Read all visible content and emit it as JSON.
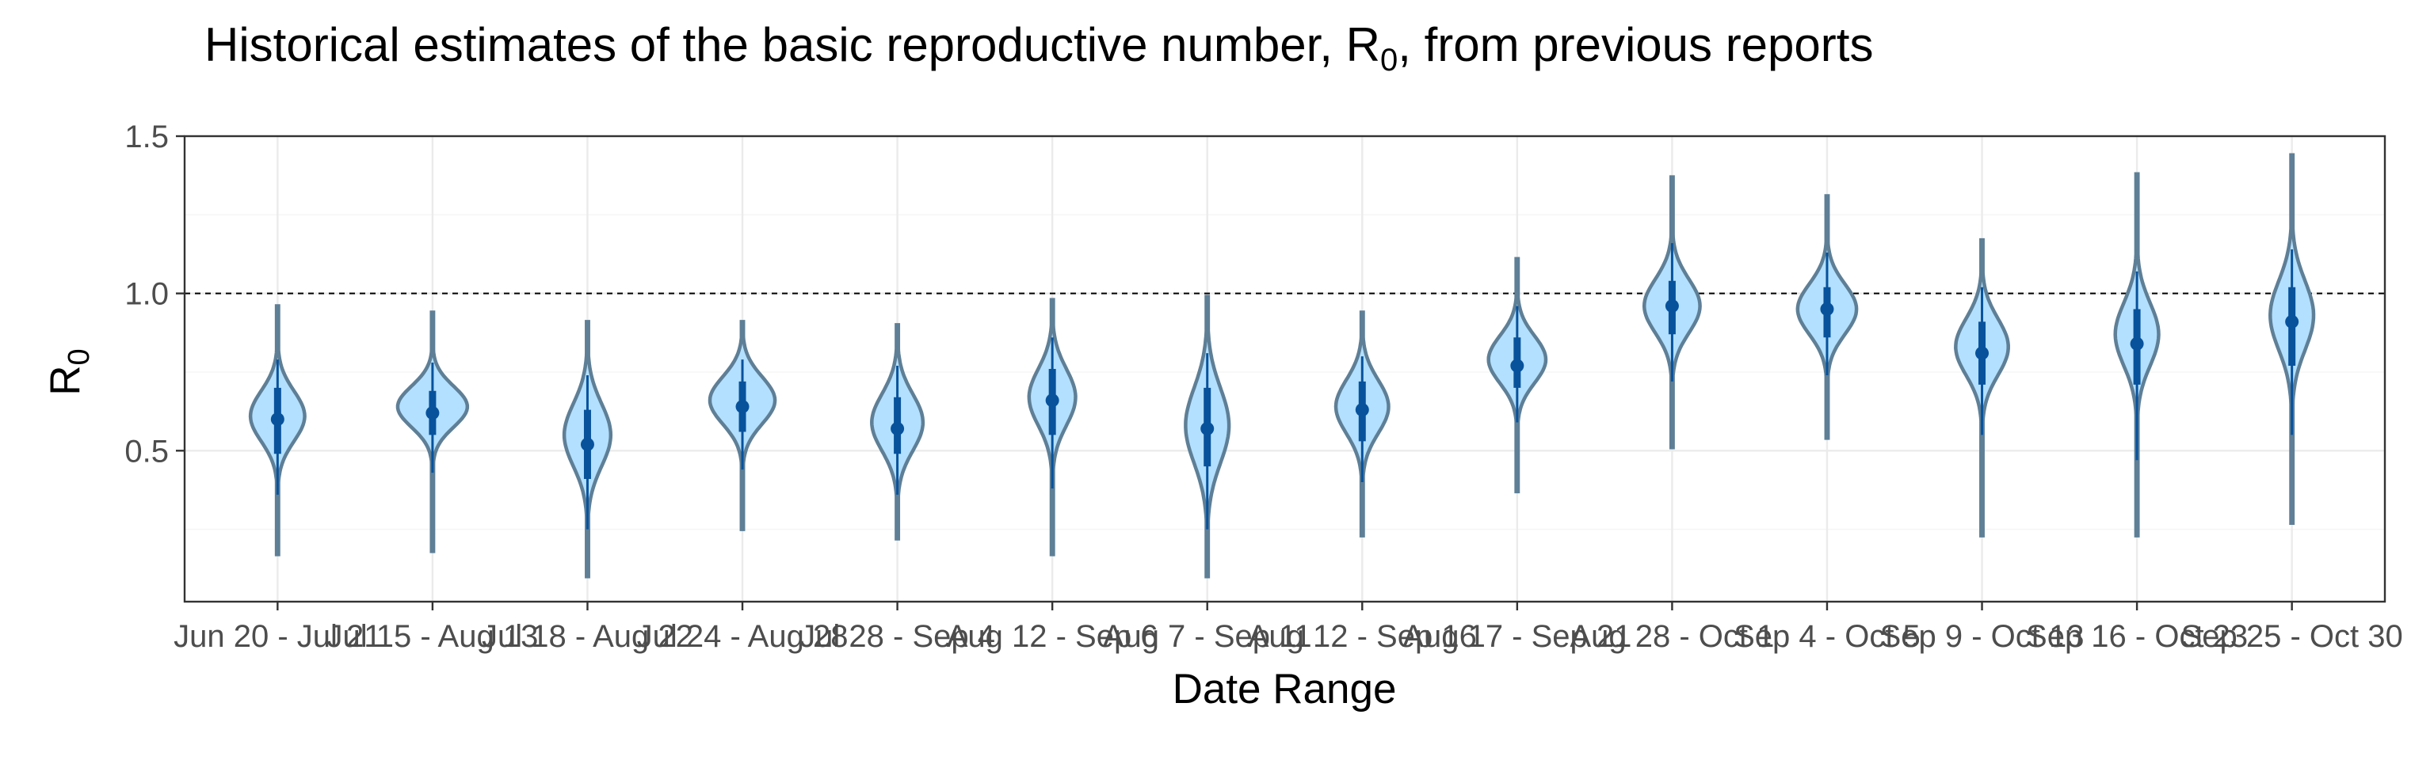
{
  "chart_data": {
    "type": "violin",
    "title_main": "Historical estimates of the basic reproductive number, R",
    "title_sub": "0",
    "title_tail": ", from previous reports",
    "xlabel": "Date Range",
    "ylabel_main": "R",
    "ylabel_sub": "0",
    "ylim": [
      0.02,
      1.5
    ],
    "yticks": [
      0.5,
      1.0,
      1.5
    ],
    "ytick_labels": [
      "0.5",
      "1.0",
      "1.5"
    ],
    "reference_line": 1.0,
    "grid": true,
    "categories": [
      "Jun 20 - Jul 21",
      "Jul 15 - Aug 13",
      "Jul 18 - Aug 22",
      "Jul 24 - Aug 28",
      "Jul 28 - Sep 4",
      "Aug 12 - Sep 6",
      "Aug 7 - Sep 11",
      "Aug 12 - Sep 16",
      "Aug 17 - Sep 21",
      "Aug 28 - Oct 1",
      "Sep 4 - Oct 5",
      "Sep 9 - Oct 13",
      "Sep 16 - Oct 23",
      "Sep 25 - Oct 30"
    ],
    "series": [
      {
        "median": 0.6,
        "q1": 0.49,
        "q3": 0.7,
        "low": 0.36,
        "high": 0.79,
        "min": 0.17,
        "max": 0.96,
        "mode": 0.61,
        "spread": 0.08,
        "width": 0.35
      },
      {
        "median": 0.62,
        "q1": 0.55,
        "q3": 0.69,
        "low": 0.43,
        "high": 0.78,
        "min": 0.18,
        "max": 0.94,
        "mode": 0.64,
        "spread": 0.065,
        "width": 0.45
      },
      {
        "median": 0.52,
        "q1": 0.41,
        "q3": 0.63,
        "low": 0.25,
        "high": 0.74,
        "min": 0.1,
        "max": 0.91,
        "mode": 0.55,
        "spread": 0.1,
        "width": 0.3
      },
      {
        "median": 0.64,
        "q1": 0.56,
        "q3": 0.72,
        "low": 0.44,
        "high": 0.79,
        "min": 0.25,
        "max": 0.91,
        "mode": 0.66,
        "spread": 0.075,
        "width": 0.42
      },
      {
        "median": 0.57,
        "q1": 0.49,
        "q3": 0.67,
        "low": 0.36,
        "high": 0.77,
        "min": 0.22,
        "max": 0.9,
        "mode": 0.59,
        "spread": 0.09,
        "width": 0.33
      },
      {
        "median": 0.66,
        "q1": 0.55,
        "q3": 0.76,
        "low": 0.38,
        "high": 0.86,
        "min": 0.17,
        "max": 0.98,
        "mode": 0.67,
        "spread": 0.09,
        "width": 0.3
      },
      {
        "median": 0.57,
        "q1": 0.45,
        "q3": 0.7,
        "low": 0.25,
        "high": 0.81,
        "min": 0.1,
        "max": 0.99,
        "mode": 0.58,
        "spread": 0.12,
        "width": 0.28
      },
      {
        "median": 0.63,
        "q1": 0.53,
        "q3": 0.72,
        "low": 0.4,
        "high": 0.8,
        "min": 0.23,
        "max": 0.94,
        "mode": 0.64,
        "spread": 0.085,
        "width": 0.34
      },
      {
        "median": 0.77,
        "q1": 0.7,
        "q3": 0.86,
        "low": 0.59,
        "high": 0.96,
        "min": 0.37,
        "max": 1.11,
        "mode": 0.79,
        "spread": 0.075,
        "width": 0.37
      },
      {
        "median": 0.96,
        "q1": 0.87,
        "q3": 1.04,
        "low": 0.72,
        "high": 1.16,
        "min": 0.51,
        "max": 1.37,
        "mode": 0.96,
        "spread": 0.085,
        "width": 0.36
      },
      {
        "median": 0.95,
        "q1": 0.86,
        "q3": 1.02,
        "low": 0.74,
        "high": 1.13,
        "min": 0.54,
        "max": 1.31,
        "mode": 0.95,
        "spread": 0.08,
        "width": 0.38
      },
      {
        "median": 0.81,
        "q1": 0.71,
        "q3": 0.91,
        "low": 0.55,
        "high": 1.02,
        "min": 0.23,
        "max": 1.17,
        "mode": 0.83,
        "spread": 0.09,
        "width": 0.34
      },
      {
        "median": 0.84,
        "q1": 0.71,
        "q3": 0.95,
        "low": 0.47,
        "high": 1.07,
        "min": 0.23,
        "max": 1.38,
        "mode": 0.87,
        "spread": 0.1,
        "width": 0.28
      },
      {
        "median": 0.91,
        "q1": 0.77,
        "q3": 1.02,
        "low": 0.55,
        "high": 1.14,
        "min": 0.27,
        "max": 1.44,
        "mode": 0.93,
        "spread": 0.11,
        "width": 0.28
      }
    ],
    "colors": {
      "violin_fill": "#b3e0ff",
      "violin_outline": "#5e7f96",
      "interval": "#08529c",
      "reference": "#000000"
    }
  }
}
